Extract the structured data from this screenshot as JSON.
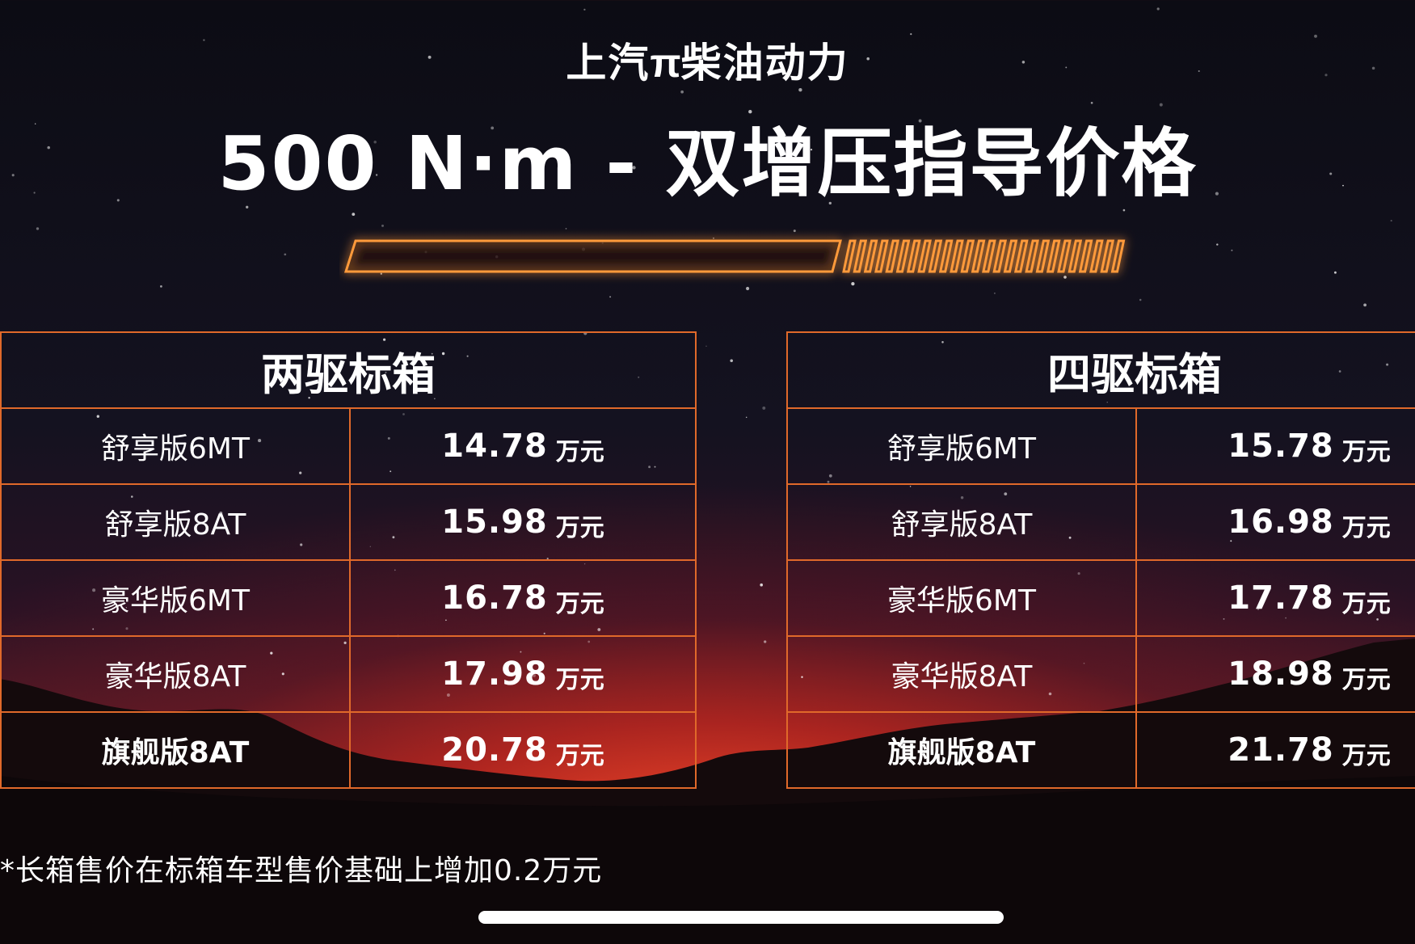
{
  "header": {
    "brand_logo": "π",
    "brand_text": "上汽",
    "brand_suffix": "柴油动力",
    "title": "500 N·m - 双增压指导价格"
  },
  "tables": [
    {
      "header": "两驱标箱",
      "rows": [
        {
          "trim": "舒享版6MT",
          "price": "14.78",
          "unit": "万元",
          "bold": false
        },
        {
          "trim": "舒享版8AT",
          "price": "15.98",
          "unit": "万元",
          "bold": false
        },
        {
          "trim": "豪华版6MT",
          "price": "16.78",
          "unit": "万元",
          "bold": false
        },
        {
          "trim": "豪华版8AT",
          "price": "17.98",
          "unit": "万元",
          "bold": false
        },
        {
          "trim": "旗舰版8AT",
          "price": "20.78",
          "unit": "万元",
          "bold": true
        }
      ]
    },
    {
      "header": "四驱标箱",
      "rows": [
        {
          "trim": "舒享版6MT",
          "price": "15.78",
          "unit": "万元",
          "bold": false
        },
        {
          "trim": "舒享版8AT",
          "price": "16.98",
          "unit": "万元",
          "bold": false
        },
        {
          "trim": "豪华版6MT",
          "price": "17.78",
          "unit": "万元",
          "bold": false
        },
        {
          "trim": "豪华版8AT",
          "price": "18.98",
          "unit": "万元",
          "bold": false
        },
        {
          "trim": "旗舰版8AT",
          "price": "21.78",
          "unit": "万元",
          "bold": true
        }
      ]
    }
  ],
  "footnote": "*长箱售价在标箱车型售价基础上增加0.2万元",
  "colors": {
    "accent": "#e0692a",
    "glow": "#ff8a2a",
    "text": "#ffffff",
    "sky_top": "#0c0c14",
    "horizon": "#e8462a"
  }
}
